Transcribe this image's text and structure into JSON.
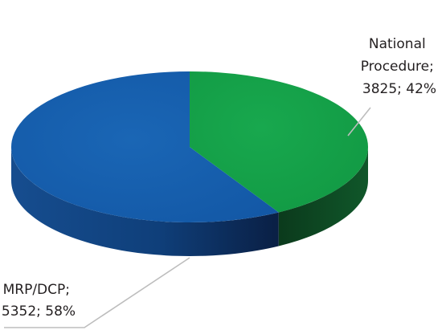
{
  "chart_data": {
    "type": "pie",
    "style": "3d",
    "slices": [
      {
        "name": "National Procedure",
        "value": 3825,
        "percent": 42,
        "color": "#15a24a",
        "label_lines": [
          "National",
          "Procedure;",
          "3825; 42%"
        ]
      },
      {
        "name": "MRP/DCP",
        "value": 5352,
        "percent": 58,
        "color": "#1660ae",
        "label_lines": [
          "MRP/DCP;",
          "5352; 58%"
        ]
      }
    ],
    "leader_line_color": "#bdbdbd"
  }
}
